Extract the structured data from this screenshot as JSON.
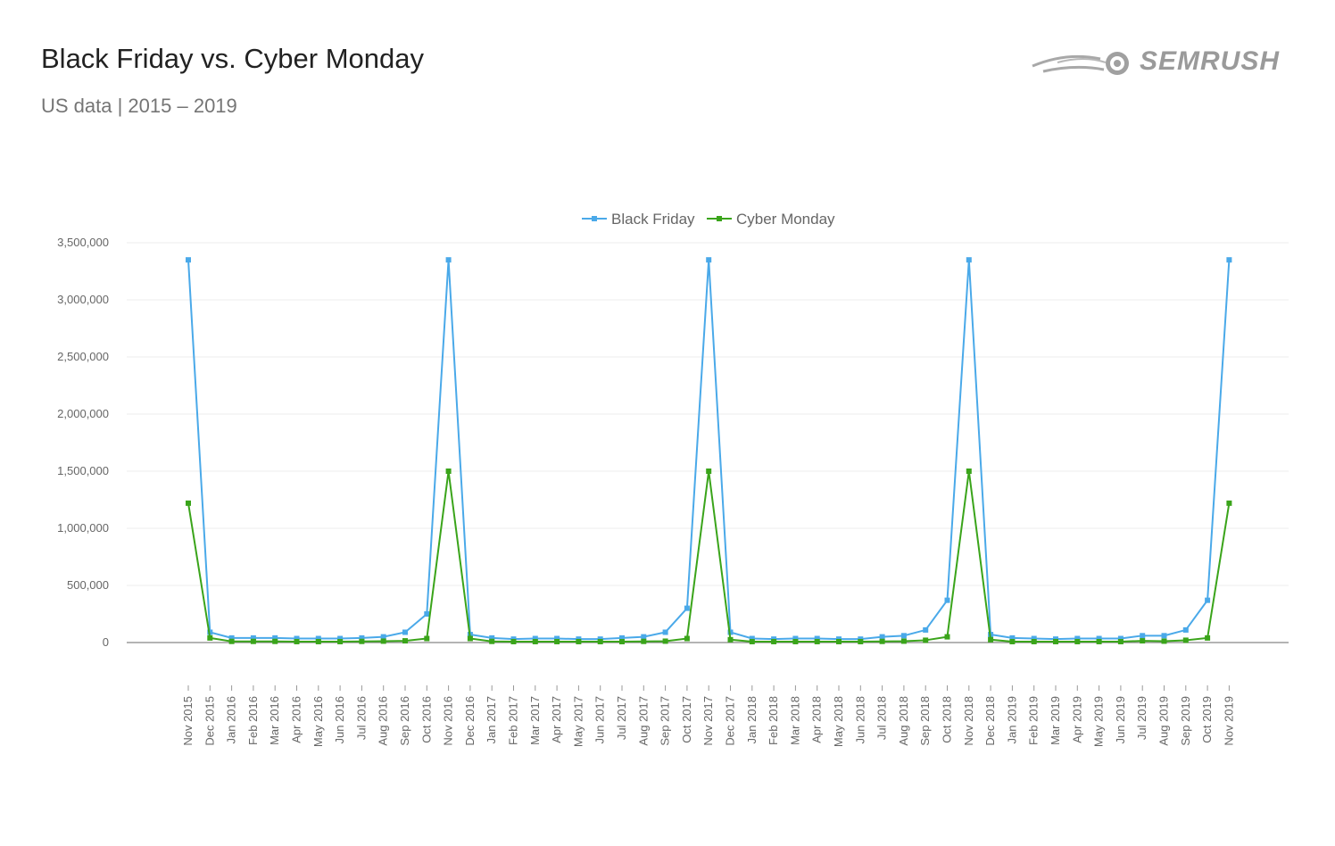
{
  "header": {
    "title": "Black Friday vs. Cyber Monday",
    "subtitle": "US data | 2015 – 2019",
    "logo_text": "SEMRUSH"
  },
  "colors": {
    "black_friday": "#4aa9e9",
    "cyber_monday": "#3aa41a",
    "grid": "#eeeeee",
    "axis": "#888888"
  },
  "chart_data": {
    "type": "line",
    "title": "Black Friday vs. Cyber Monday",
    "subtitle": "US data | 2015 – 2019",
    "legend_position": "top-center",
    "grid": true,
    "ylim": [
      0,
      3500000
    ],
    "yticks": [
      0,
      500000,
      1000000,
      1500000,
      2000000,
      2500000,
      3000000,
      3500000
    ],
    "ytick_labels": [
      "0",
      "500,000",
      "1,000,000",
      "1,500,000",
      "2,000,000",
      "2,500,000",
      "3,000,000",
      "3,500,000"
    ],
    "categories": [
      "Nov 2015",
      "Dec 2015",
      "Jan 2016",
      "Feb 2016",
      "Mar 2016",
      "Apr 2016",
      "May 2016",
      "Jun 2016",
      "Jul 2016",
      "Aug 2016",
      "Sep 2016",
      "Oct 2016",
      "Nov 2016",
      "Dec 2016",
      "Jan 2017",
      "Feb 2017",
      "Mar 2017",
      "Apr 2017",
      "May 2017",
      "Jun 2017",
      "Jul 2017",
      "Aug 2017",
      "Sep 2017",
      "Oct 2017",
      "Nov 2017",
      "Dec 2017",
      "Jan 2018",
      "Feb 2018",
      "Mar 2018",
      "Apr 2018",
      "May 2018",
      "Jun 2018",
      "Jul 2018",
      "Aug 2018",
      "Sep 2018",
      "Oct 2018",
      "Nov 2018",
      "Dec 2018",
      "Jan 2019",
      "Feb 2019",
      "Mar 2019",
      "Apr 2019",
      "May 2019",
      "Jun 2019",
      "Jul 2019",
      "Aug 2019",
      "Sep 2019",
      "Oct 2019",
      "Nov 2019"
    ],
    "series": [
      {
        "name": "Black Friday",
        "values": [
          3350000,
          90000,
          40000,
          40000,
          40000,
          35000,
          35000,
          35000,
          40000,
          50000,
          90000,
          250000,
          3350000,
          70000,
          40000,
          30000,
          35000,
          35000,
          30000,
          30000,
          40000,
          50000,
          90000,
          300000,
          3350000,
          90000,
          35000,
          30000,
          35000,
          35000,
          30000,
          30000,
          50000,
          60000,
          110000,
          370000,
          3350000,
          70000,
          40000,
          35000,
          30000,
          35000,
          35000,
          35000,
          60000,
          60000,
          110000,
          370000,
          3350000
        ]
      },
      {
        "name": "Cyber Monday",
        "values": [
          1220000,
          40000,
          10000,
          10000,
          10000,
          8000,
          8000,
          8000,
          10000,
          12000,
          15000,
          35000,
          1500000,
          35000,
          10000,
          8000,
          8000,
          8000,
          8000,
          8000,
          8000,
          10000,
          12000,
          35000,
          1500000,
          25000,
          8000,
          8000,
          8000,
          8000,
          8000,
          8000,
          10000,
          12000,
          20000,
          50000,
          1500000,
          25000,
          8000,
          8000,
          8000,
          8000,
          8000,
          8000,
          15000,
          12000,
          20000,
          40000,
          1220000
        ]
      }
    ]
  }
}
